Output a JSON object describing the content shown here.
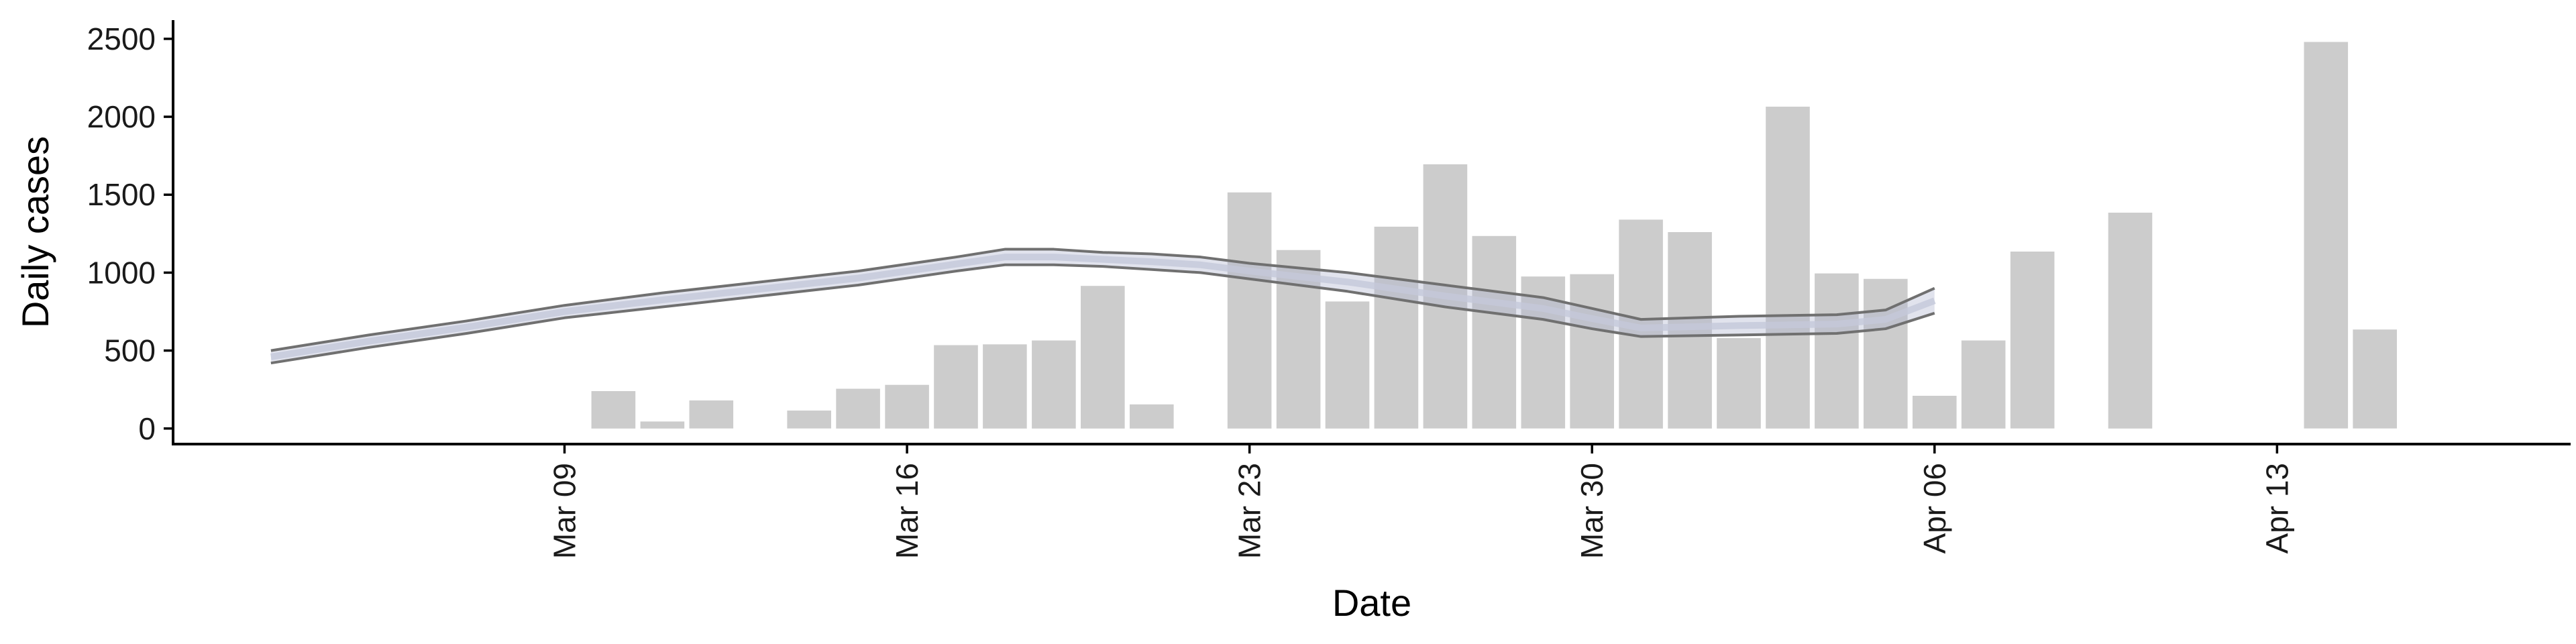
{
  "chart_data": {
    "type": "bar",
    "title": "",
    "xlabel": "Date",
    "ylabel": "Daily cases",
    "ylim": [
      -100,
      2620
    ],
    "xlim": [
      "2021-03-01",
      "2021-04-19"
    ],
    "grid": false,
    "legend": "none",
    "x_ticks": [
      "Mar 09",
      "Mar 16",
      "Mar 23",
      "Mar 30",
      "Apr 06",
      "Apr 13"
    ],
    "y_ticks": [
      "0",
      "500",
      "1000",
      "1500",
      "2000",
      "2500"
    ],
    "y_tick_values": [
      0,
      500,
      1000,
      1500,
      2000,
      2500
    ],
    "bars": {
      "color": "#cccccc",
      "dates": [
        "2021-03-10",
        "2021-03-11",
        "2021-03-12",
        "2021-03-14",
        "2021-03-15",
        "2021-03-16",
        "2021-03-17",
        "2021-03-18",
        "2021-03-19",
        "2021-03-20",
        "2021-03-21",
        "2021-03-23",
        "2021-03-24",
        "2021-03-25",
        "2021-03-26",
        "2021-03-27",
        "2021-03-28",
        "2021-03-29",
        "2021-03-30",
        "2021-03-31",
        "2021-04-01",
        "2021-04-02",
        "2021-04-03",
        "2021-04-04",
        "2021-04-05",
        "2021-04-06",
        "2021-04-07",
        "2021-04-08",
        "2021-04-10",
        "2021-04-14",
        "2021-04-15"
      ],
      "values": [
        240,
        45,
        180,
        115,
        255,
        280,
        535,
        540,
        565,
        915,
        155,
        1515,
        1145,
        815,
        1295,
        1695,
        1235,
        975,
        990,
        1340,
        1260,
        580,
        2065,
        995,
        960,
        210,
        565,
        1135,
        1385,
        2480,
        635
      ]
    },
    "ribbon": {
      "line_color": "#707070",
      "fill_color": "#aab0cc",
      "dates": [
        "2021-03-03",
        "2021-03-05",
        "2021-03-07",
        "2021-03-09",
        "2021-03-11",
        "2021-03-13",
        "2021-03-15",
        "2021-03-17",
        "2021-03-18",
        "2021-03-19",
        "2021-03-20",
        "2021-03-21",
        "2021-03-22",
        "2021-03-23",
        "2021-03-25",
        "2021-03-27",
        "2021-03-29",
        "2021-03-30",
        "2021-03-31",
        "2021-04-02",
        "2021-04-04",
        "2021-04-05",
        "2021-04-06"
      ],
      "upper": [
        500,
        600,
        690,
        790,
        870,
        940,
        1010,
        1100,
        1150,
        1150,
        1130,
        1120,
        1100,
        1060,
        1000,
        920,
        840,
        770,
        700,
        720,
        730,
        760,
        900
      ],
      "lower": [
        420,
        520,
        610,
        710,
        780,
        850,
        920,
        1010,
        1050,
        1050,
        1040,
        1020,
        1000,
        960,
        880,
        780,
        700,
        640,
        590,
        600,
        610,
        640,
        740
      ]
    }
  }
}
